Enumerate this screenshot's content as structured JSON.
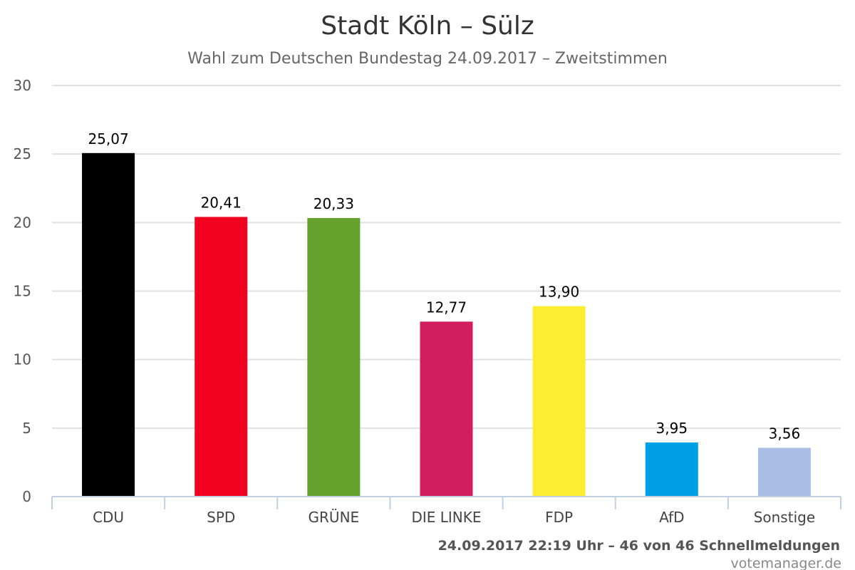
{
  "chart_data": {
    "type": "bar",
    "title": "Stadt Köln – Sülz",
    "subtitle": "Wahl zum Deutschen Bundestag 24.09.2017 – Zweitstimmen",
    "categories": [
      "CDU",
      "SPD",
      "GRÜNE",
      "DIE LINKE",
      "FDP",
      "AfD",
      "Sonstige"
    ],
    "values": [
      25.07,
      20.41,
      20.33,
      12.77,
      13.9,
      3.95,
      3.56
    ],
    "value_labels": [
      "25,07",
      "20,41",
      "20,33",
      "12,77",
      "13,90",
      "3,95",
      "3,56"
    ],
    "colors": [
      "#000000",
      "#f2021e",
      "#64a12d",
      "#d11e5c",
      "#fbee32",
      "#00a1e4",
      "#a9bde5"
    ],
    "yticks": [
      "0",
      "5",
      "10",
      "15",
      "20",
      "25",
      "30"
    ],
    "ylim": [
      0,
      30
    ],
    "grid": true,
    "legend": "none"
  },
  "footer": {
    "timestamp": "24.09.2017 22:19 Uhr – 46 von 46 Schnellmeldungen",
    "credit": "votemanager.de"
  }
}
